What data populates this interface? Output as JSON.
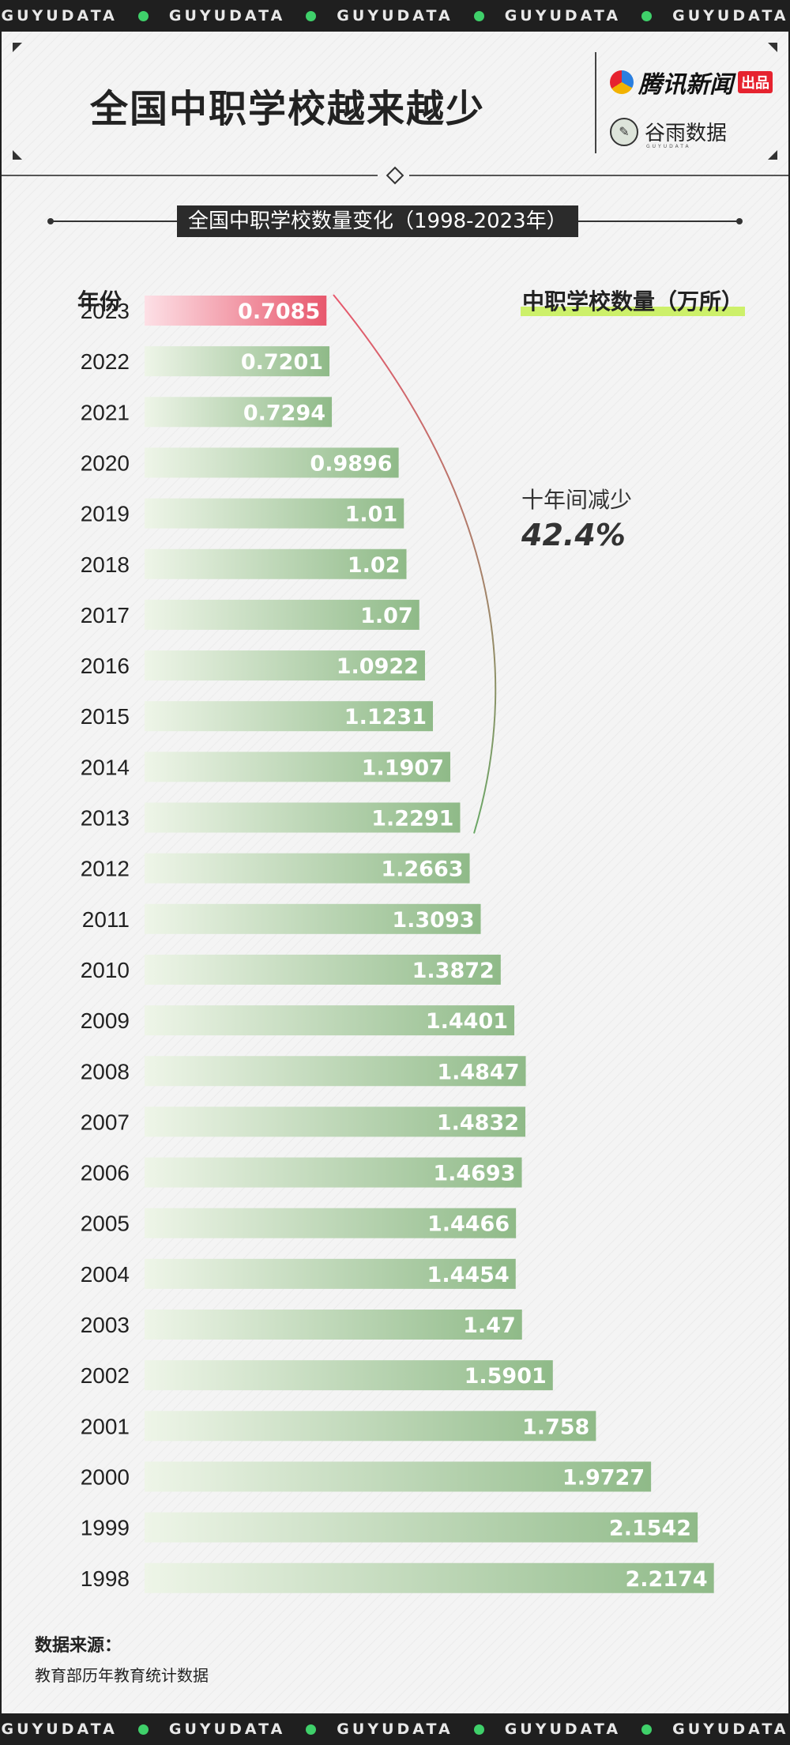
{
  "band": {
    "text": "GUYUDATA"
  },
  "header": {
    "title": "全国中职学校越来越少",
    "brand_primary": "腾讯新闻",
    "brand_primary_tag": "出品",
    "brand_secondary": "谷雨数据",
    "brand_secondary_sub": "GUYUDATA"
  },
  "chart_data": {
    "type": "bar",
    "orientation": "horizontal",
    "title": "全国中职学校数量变化（1998-2023年）",
    "xlabel": "中职学校数量（万所）",
    "ylabel": "年份",
    "categories": [
      "2023",
      "2022",
      "2021",
      "2020",
      "2019",
      "2018",
      "2017",
      "2016",
      "2015",
      "2014",
      "2013",
      "2012",
      "2011",
      "2010",
      "2009",
      "2008",
      "2007",
      "2006",
      "2005",
      "2004",
      "2003",
      "2002",
      "2001",
      "2000",
      "1999",
      "1998"
    ],
    "values": [
      0.7085,
      0.7201,
      0.7294,
      0.9896,
      1.01,
      1.02,
      1.07,
      1.0922,
      1.1231,
      1.1907,
      1.2291,
      1.2663,
      1.3093,
      1.3872,
      1.4401,
      1.4847,
      1.4832,
      1.4693,
      1.4466,
      1.4454,
      1.47,
      1.5901,
      1.758,
      1.9727,
      2.1542,
      2.2174
    ],
    "labels": [
      "0.7085",
      "0.7201",
      "0.7294",
      "0.9896",
      "1.01",
      "1.02",
      "1.07",
      "1.0922",
      "1.1231",
      "1.1907",
      "1.2291",
      "1.2663",
      "1.3093",
      "1.3872",
      "1.4401",
      "1.4847",
      "1.4832",
      "1.4693",
      "1.4466",
      "1.4454",
      "1.47",
      "1.5901",
      "1.758",
      "1.9727",
      "2.1542",
      "2.2174"
    ],
    "highlight": "2023",
    "colors": {
      "bar": "#8fba88",
      "bar_light": "#eef5e8",
      "highlight": "#e8586d",
      "highlight_light": "#fde0e6"
    },
    "annotation": {
      "text": "十年间减少",
      "value": "42.4%",
      "from": "2013",
      "to": "2023"
    }
  },
  "source": {
    "label": "数据来源：",
    "text": "教育部历年教育统计数据"
  }
}
